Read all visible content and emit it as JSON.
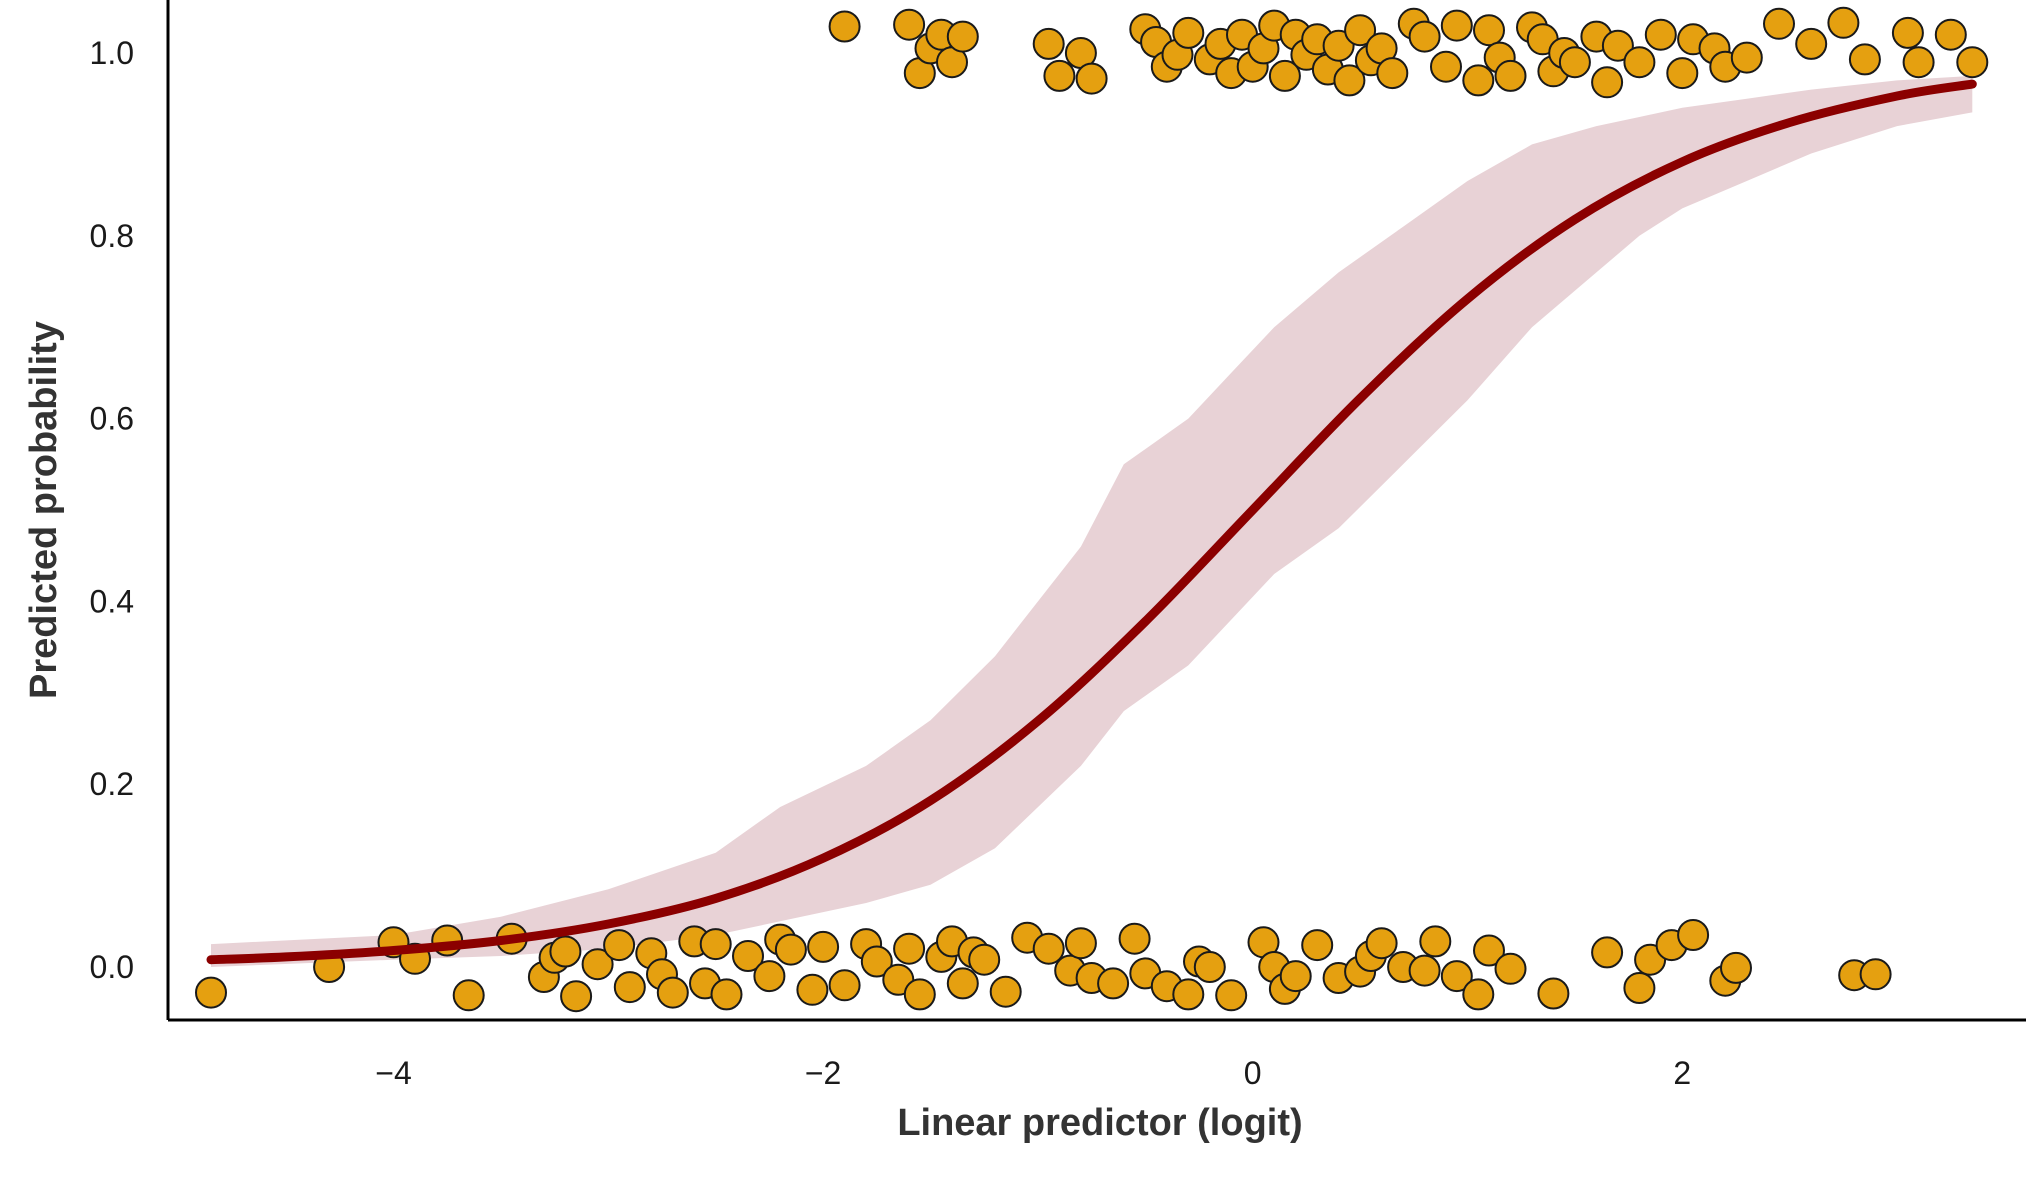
{
  "chart_data": {
    "type": "scatter",
    "title": "",
    "xlabel": "Linear predictor (logit)",
    "ylabel": "Predicted probability",
    "xlim": [
      -5.05,
      3.6
    ],
    "ylim": [
      -0.058,
      1.058
    ],
    "x_ticks": [
      -4,
      -2,
      0,
      2
    ],
    "x_tick_labels": [
      "−4",
      "−2",
      "0",
      "2"
    ],
    "y_ticks": [
      0.0,
      0.2,
      0.4,
      0.6,
      0.8,
      1.0
    ],
    "y_tick_labels": [
      "0.0",
      "0.2",
      "0.4",
      "0.6",
      "0.8",
      "1.0"
    ],
    "grid": false,
    "legend": "none",
    "colors": {
      "points": "#E5A010",
      "point_edge": "#1a1a1a",
      "curve": "#8B0000",
      "band": "#E8D2D6",
      "axis": "#000000"
    },
    "curve": {
      "x": [
        -4.85,
        -4.5,
        -4.0,
        -3.5,
        -3.0,
        -2.5,
        -2.0,
        -1.5,
        -1.0,
        -0.5,
        0.0,
        0.5,
        1.0,
        1.5,
        2.0,
        2.5,
        3.0,
        3.35
      ],
      "y": [
        0.008,
        0.011,
        0.018,
        0.029,
        0.047,
        0.075,
        0.119,
        0.182,
        0.269,
        0.378,
        0.5,
        0.622,
        0.731,
        0.818,
        0.881,
        0.924,
        0.953,
        0.966
      ]
    },
    "band": {
      "x": [
        -4.85,
        -4.0,
        -3.5,
        -3.0,
        -2.5,
        -2.2,
        -1.8,
        -1.5,
        -1.2,
        -0.8,
        -0.6,
        -0.3,
        -0.1,
        0.1,
        0.4,
        0.7,
        1.0,
        1.3,
        1.6,
        1.8,
        2.0,
        2.3,
        2.6,
        3.0,
        3.35
      ],
      "upper": [
        0.025,
        0.035,
        0.055,
        0.085,
        0.125,
        0.175,
        0.22,
        0.27,
        0.34,
        0.46,
        0.55,
        0.6,
        0.65,
        0.7,
        0.76,
        0.81,
        0.86,
        0.9,
        0.92,
        0.93,
        0.94,
        0.95,
        0.96,
        0.97,
        0.975
      ],
      "lower": [
        0.0,
        0.008,
        0.012,
        0.02,
        0.035,
        0.05,
        0.07,
        0.09,
        0.13,
        0.22,
        0.28,
        0.33,
        0.38,
        0.43,
        0.48,
        0.55,
        0.62,
        0.7,
        0.76,
        0.8,
        0.83,
        0.86,
        0.89,
        0.92,
        0.935
      ]
    },
    "series": [
      {
        "outcome": 0,
        "x": [
          -4.85,
          -4.3,
          -4.0,
          -3.9,
          -3.75,
          -3.65,
          -3.45,
          -3.3,
          -3.25,
          -3.2,
          -3.15,
          -3.05,
          -2.95,
          -2.9,
          -2.8,
          -2.75,
          -2.7,
          -2.6,
          -2.55,
          -2.5,
          -2.45,
          -2.35,
          -2.25,
          -2.2,
          -2.15,
          -2.05,
          -2.0,
          -1.9,
          -1.8,
          -1.75,
          -1.65,
          -1.6,
          -1.55,
          -1.45,
          -1.4,
          -1.35,
          -1.3,
          -1.25,
          -1.15,
          -1.05,
          -0.95,
          -0.85,
          -0.8,
          -0.75,
          -0.65,
          -0.55,
          -0.5,
          -0.4,
          -0.3,
          -0.25,
          -0.2,
          -0.1,
          0.05,
          0.1,
          0.15,
          0.2,
          0.3,
          0.4,
          0.5,
          0.55,
          0.6,
          0.7,
          0.8,
          0.85,
          0.95,
          1.05,
          1.1,
          1.2,
          1.4,
          1.65,
          1.8,
          1.85,
          1.95,
          2.05,
          2.2,
          2.25,
          2.8,
          2.9
        ],
        "y": [
          -0.028,
          0.0,
          0.027,
          0.009,
          0.029,
          -0.031,
          0.031,
          -0.011,
          0.01,
          0.017,
          -0.032,
          0.003,
          0.024,
          -0.022,
          0.015,
          -0.008,
          -0.028,
          0.028,
          -0.018,
          0.025,
          -0.03,
          0.012,
          -0.01,
          0.03,
          0.019,
          -0.025,
          0.022,
          -0.02,
          0.025,
          0.006,
          -0.014,
          0.02,
          -0.03,
          0.011,
          0.028,
          -0.018,
          0.016,
          0.008,
          -0.027,
          0.032,
          0.02,
          -0.004,
          0.026,
          -0.012,
          -0.018,
          0.031,
          -0.007,
          -0.021,
          -0.03,
          0.006,
          0.0,
          -0.031,
          0.027,
          0.0,
          -0.024,
          -0.01,
          0.024,
          -0.012,
          -0.005,
          0.012,
          0.026,
          0.0,
          -0.004,
          0.028,
          -0.01,
          -0.03,
          0.018,
          -0.002,
          -0.029,
          0.016,
          -0.023,
          0.008,
          0.024,
          0.035,
          -0.015,
          -0.001,
          -0.009,
          -0.008
        ]
      },
      {
        "outcome": 1,
        "x": [
          -1.9,
          -1.6,
          -1.55,
          -1.5,
          -1.45,
          -1.4,
          -1.35,
          -0.95,
          -0.9,
          -0.8,
          -0.75,
          -0.5,
          -0.45,
          -0.4,
          -0.35,
          -0.3,
          -0.2,
          -0.15,
          -0.1,
          -0.05,
          0.0,
          0.05,
          0.1,
          0.15,
          0.2,
          0.25,
          0.3,
          0.35,
          0.4,
          0.45,
          0.5,
          0.55,
          0.6,
          0.65,
          0.75,
          0.8,
          0.9,
          0.95,
          1.05,
          1.1,
          1.15,
          1.2,
          1.3,
          1.35,
          1.4,
          1.45,
          1.5,
          1.6,
          1.65,
          1.7,
          1.8,
          1.9,
          2.0,
          2.05,
          2.15,
          2.2,
          2.3,
          2.45,
          2.6,
          2.75,
          2.85,
          3.05,
          3.1,
          3.25,
          3.35
        ],
        "y": [
          1.029,
          1.031,
          0.978,
          1.005,
          1.02,
          0.99,
          1.018,
          1.01,
          0.975,
          1.0,
          0.972,
          1.026,
          1.012,
          0.985,
          0.998,
          1.022,
          0.993,
          1.01,
          0.978,
          1.02,
          0.985,
          1.005,
          1.03,
          0.975,
          1.02,
          0.998,
          1.015,
          0.982,
          1.008,
          0.97,
          1.025,
          0.992,
          1.005,
          0.978,
          1.032,
          1.018,
          0.985,
          1.03,
          0.97,
          1.025,
          0.995,
          0.975,
          1.028,
          1.015,
          0.98,
          1.0,
          0.99,
          1.018,
          0.968,
          1.008,
          0.99,
          1.02,
          0.978,
          1.015,
          1.005,
          0.985,
          0.995,
          1.032,
          1.01,
          1.033,
          0.993,
          1.022,
          0.99,
          1.02,
          0.99
        ]
      }
    ]
  }
}
